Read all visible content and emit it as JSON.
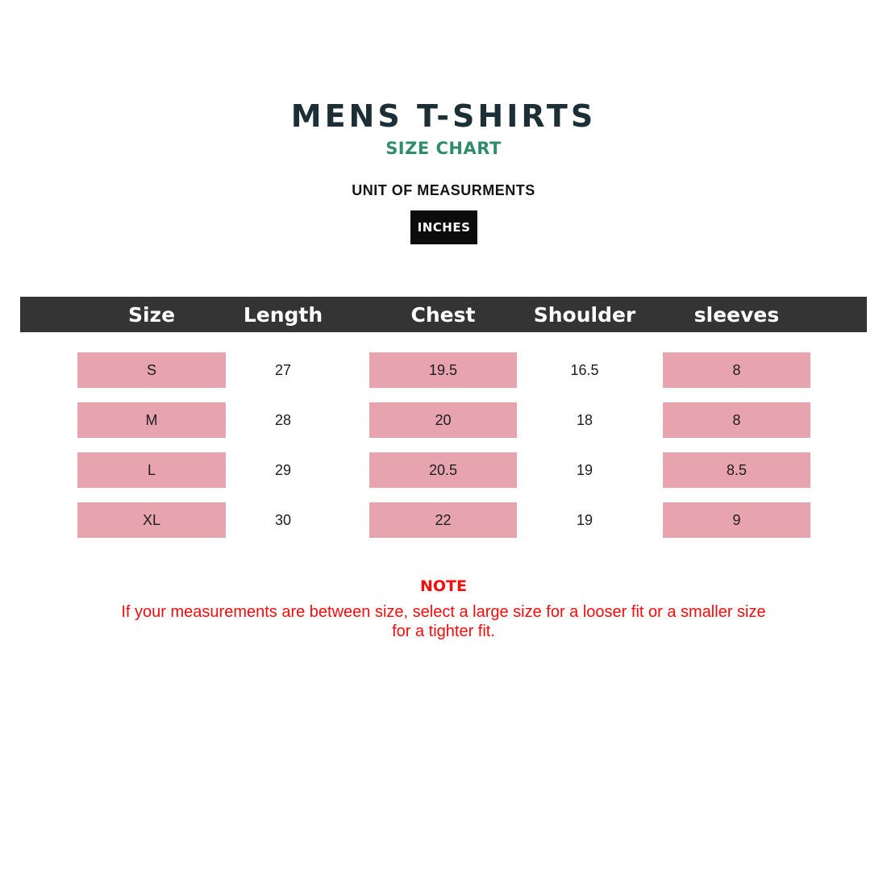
{
  "header": {
    "title": "MENS T-SHIRTS",
    "subtitle": "SIZE CHART",
    "unit_label": "UNIT OF MEASURMENTS",
    "unit_value": "INCHES"
  },
  "table": {
    "columns": [
      "Size",
      "Length",
      "Chest",
      "Shoulder",
      "sleeves"
    ],
    "rows": [
      {
        "size": "S",
        "length": "27",
        "chest": "19.5",
        "shoulder": "16.5",
        "sleeves": "8"
      },
      {
        "size": "M",
        "length": "28",
        "chest": "20",
        "shoulder": "18",
        "sleeves": "8"
      },
      {
        "size": "L",
        "length": "29",
        "chest": "20.5",
        "shoulder": "19",
        "sleeves": "8.5"
      },
      {
        "size": "XL",
        "length": "30",
        "chest": "22",
        "shoulder": "19",
        "sleeves": "9"
      }
    ]
  },
  "note": {
    "heading": "NOTE",
    "text": "If your measurements are between size, select a large size for a looser fit or a smaller size\nfor a tighter fit."
  },
  "colors": {
    "title": "#1c2e36",
    "accent_green": "#2f8e68",
    "header_bar": "#343434",
    "highlight_pink": "#e7a3ae",
    "note_red": "#f50c0c",
    "unit_box_bg": "#0c0c0c"
  },
  "chart_data": {
    "type": "table",
    "title": "MENS T-SHIRTS SIZE CHART",
    "unit": "INCHES",
    "columns": [
      "Size",
      "Length",
      "Chest",
      "Shoulder",
      "sleeves"
    ],
    "rows": [
      [
        "S",
        27,
        19.5,
        16.5,
        8
      ],
      [
        "M",
        28,
        20,
        18,
        8
      ],
      [
        "L",
        29,
        20.5,
        19,
        8.5
      ],
      [
        "XL",
        30,
        22,
        19,
        9
      ]
    ],
    "highlighted_columns": [
      "Size",
      "Chest",
      "sleeves"
    ]
  }
}
